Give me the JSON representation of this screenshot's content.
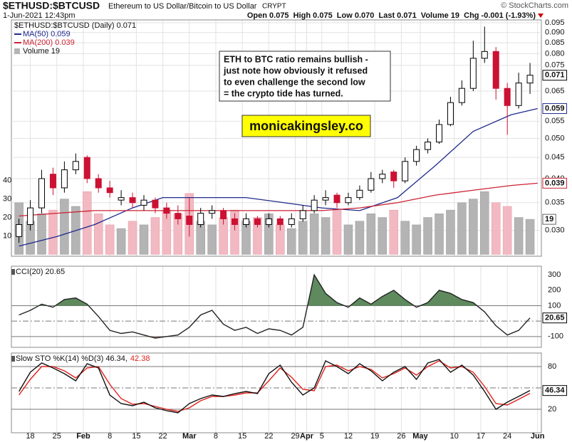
{
  "header": {
    "symbol": "$ETHUSD:$BTCUSD",
    "description": "Ethereum to US Dollar/Bitcoin to US Dollar",
    "exchange": "CRYPT",
    "date": "1-Jun-2021 12:43pm",
    "quote": "Open 0.075  High 0.075  Low 0.070  Last 0.071  Volume 19  Chg -0.001 (-1.93%)",
    "copyright": "© StockCharts.com"
  },
  "chart_data": [
    {
      "type": "candlestick",
      "legend_label": "$ETHUSD:$BTCUSD (Daily) 0.071",
      "last_label": "0.071",
      "up_color": "#000000",
      "down_color": "#cc1133",
      "log": true,
      "xlim": [
        -2,
        138
      ],
      "ylim": [
        0.026,
        0.0965
      ],
      "yticks": [
        0.095,
        {
          "value": 0.09,
          "label": "0.090"
        },
        0.085,
        {
          "value": 0.08,
          "label": "0.080"
        },
        0.075,
        0.065,
        0.055,
        {
          "value": 0.05,
          "label": "0.050"
        },
        0.045,
        {
          "value": 0.04,
          "label": "0.040"
        },
        0.035,
        {
          "value": 0.03,
          "label": "0.030"
        }
      ],
      "x": [
        0,
        3,
        6,
        9,
        12,
        15,
        18,
        21,
        24,
        27,
        30,
        33,
        36,
        39,
        42,
        45,
        48,
        51,
        54,
        57,
        60,
        63,
        66,
        69,
        72,
        75,
        78,
        81,
        84,
        87,
        90,
        93,
        96,
        99,
        102,
        105,
        108,
        111,
        114,
        117,
        120,
        123,
        126,
        129,
        132,
        135
      ],
      "open": [
        0.029,
        0.031,
        0.034,
        0.041,
        0.038,
        0.042,
        0.045,
        0.04,
        0.038,
        0.0355,
        0.036,
        0.0345,
        0.0355,
        0.034,
        0.033,
        0.0325,
        0.031,
        0.033,
        0.0335,
        0.032,
        0.031,
        0.032,
        0.031,
        0.032,
        0.031,
        0.032,
        0.0335,
        0.0355,
        0.0365,
        0.035,
        0.036,
        0.0375,
        0.04,
        0.0415,
        0.0395,
        0.044,
        0.047,
        0.049,
        0.054,
        0.061,
        0.066,
        0.078,
        0.081,
        0.066,
        0.06,
        0.068
      ],
      "high": [
        0.032,
        0.0355,
        0.042,
        0.0425,
        0.044,
        0.046,
        0.0455,
        0.041,
        0.0395,
        0.0375,
        0.037,
        0.0365,
        0.036,
        0.035,
        0.0345,
        0.036,
        0.034,
        0.0345,
        0.034,
        0.033,
        0.033,
        0.0325,
        0.033,
        0.0325,
        0.033,
        0.0345,
        0.0365,
        0.0375,
        0.037,
        0.037,
        0.0385,
        0.0415,
        0.042,
        0.042,
        0.045,
        0.048,
        0.05,
        0.0555,
        0.063,
        0.069,
        0.086,
        0.093,
        0.083,
        0.068,
        0.072,
        0.076
      ],
      "low": [
        0.028,
        0.03,
        0.033,
        0.0365,
        0.037,
        0.041,
        0.039,
        0.037,
        0.036,
        0.0345,
        0.034,
        0.0335,
        0.033,
        0.032,
        0.031,
        0.029,
        0.0305,
        0.032,
        0.031,
        0.03,
        0.0305,
        0.0305,
        0.0305,
        0.03,
        0.0305,
        0.0315,
        0.033,
        0.0345,
        0.034,
        0.0345,
        0.0355,
        0.037,
        0.039,
        0.038,
        0.039,
        0.043,
        0.046,
        0.0485,
        0.0535,
        0.06,
        0.065,
        0.076,
        0.062,
        0.051,
        0.059,
        0.064
      ],
      "close": [
        0.031,
        0.034,
        0.04,
        0.038,
        0.042,
        0.044,
        0.04,
        0.038,
        0.037,
        0.036,
        0.035,
        0.0355,
        0.034,
        0.033,
        0.032,
        0.031,
        0.033,
        0.0335,
        0.032,
        0.031,
        0.032,
        0.031,
        0.032,
        0.031,
        0.032,
        0.0335,
        0.0355,
        0.036,
        0.035,
        0.036,
        0.0375,
        0.04,
        0.041,
        0.0395,
        0.044,
        0.047,
        0.049,
        0.054,
        0.061,
        0.066,
        0.078,
        0.081,
        0.066,
        0.06,
        0.068,
        0.071
      ],
      "series": [
        {
          "name": "MA(50) 0.059",
          "label": "0.059",
          "color": "#1f2a8c",
          "x": [
            0,
            10,
            20,
            30,
            38,
            60,
            70,
            80,
            90,
            100,
            110,
            120,
            130,
            137
          ],
          "values": [
            0.0275,
            0.029,
            0.031,
            0.034,
            0.036,
            0.036,
            0.035,
            0.034,
            0.0335,
            0.036,
            0.043,
            0.052,
            0.057,
            0.059
          ]
        },
        {
          "name": "MA(200) 0.039",
          "label": "0.039",
          "color": "#cc2233",
          "x": [
            0,
            10,
            20,
            30,
            38,
            60,
            70,
            80,
            90,
            100,
            110,
            120,
            130,
            137
          ],
          "values": [
            0.0325,
            0.033,
            0.0335,
            0.0335,
            0.0335,
            0.0335,
            0.0335,
            0.0335,
            0.034,
            0.035,
            0.0365,
            0.0375,
            0.0385,
            0.039
          ]
        }
      ],
      "volume": {
        "name": "Volume 19",
        "label": "19",
        "up_color": "#b4b4b4",
        "down_color": "#f2b9c2",
        "ylim": [
          -1,
          127
        ],
        "yticks": [
          10,
          20,
          30,
          40
        ],
        "values": [
          28,
          18,
          22,
          24,
          30,
          26,
          34,
          22,
          16,
          14,
          18,
          16,
          20,
          24,
          22,
          33,
          18,
          16,
          20,
          24,
          18,
          20,
          22,
          16,
          14,
          18,
          22,
          20,
          24,
          16,
          18,
          22,
          20,
          24,
          18,
          16,
          20,
          22,
          24,
          28,
          30,
          34,
          28,
          26,
          20,
          19
        ]
      },
      "annotation": [
        "ETH to BTC ratio remains bullish -",
        "just note how obviously it refused",
        "to even challenge the second low",
        "= the crypto tide has turned."
      ],
      "watermark": "monicakingsley.co"
    },
    {
      "type": "line",
      "title": "CCI(20) 20.65",
      "xlim": [
        -2,
        138
      ],
      "ylim": [
        -170,
        356
      ],
      "yticks": [
        300,
        200,
        100,
        -100
      ],
      "reference_lines": [
        100,
        0,
        -100
      ],
      "fill_above": {
        "value": 100,
        "color": "#5e8a5e"
      },
      "fill_below": {
        "value": -100,
        "color": "#9a7b72"
      },
      "x": [
        0,
        3,
        6,
        9,
        12,
        15,
        18,
        21,
        24,
        27,
        30,
        33,
        36,
        39,
        42,
        45,
        48,
        51,
        54,
        57,
        60,
        63,
        66,
        69,
        72,
        75,
        78,
        81,
        84,
        87,
        90,
        93,
        96,
        99,
        102,
        105,
        108,
        111,
        114,
        117,
        120,
        123,
        126,
        129,
        132,
        135
      ],
      "series": [
        {
          "color": "#222222",
          "label": "20.65",
          "values": [
            40,
            70,
            110,
            90,
            140,
            150,
            110,
            30,
            -60,
            -80,
            -70,
            -90,
            -110,
            -100,
            -90,
            -40,
            40,
            70,
            -20,
            -60,
            -40,
            -80,
            -50,
            -60,
            -90,
            -40,
            300,
            180,
            120,
            90,
            150,
            110,
            160,
            200,
            140,
            90,
            120,
            200,
            180,
            140,
            120,
            60,
            -30,
            -90,
            -60,
            20.65
          ]
        }
      ]
    },
    {
      "type": "line",
      "title": "Slow STO %K(14) %D(3) 46.34,",
      "title_extra": "42.38",
      "xlim": [
        -2,
        138
      ],
      "ylim": [
        -13,
        99
      ],
      "yticks": [
        80,
        20
      ],
      "reference_lines": [
        80,
        50,
        20
      ],
      "x": [
        0,
        3,
        6,
        9,
        12,
        15,
        18,
        21,
        24,
        27,
        30,
        33,
        36,
        39,
        42,
        45,
        48,
        51,
        54,
        57,
        60,
        63,
        66,
        69,
        72,
        75,
        78,
        81,
        84,
        87,
        90,
        93,
        96,
        99,
        102,
        105,
        108,
        111,
        114,
        117,
        120,
        123,
        126,
        129,
        132,
        135
      ],
      "series": [
        {
          "color": "#111111",
          "label": "46.34",
          "values": [
            45,
            72,
            85,
            78,
            70,
            60,
            84,
            78,
            40,
            28,
            25,
            30,
            22,
            18,
            15,
            28,
            35,
            40,
            38,
            42,
            45,
            42,
            70,
            82,
            58,
            40,
            50,
            88,
            80,
            70,
            84,
            74,
            60,
            72,
            80,
            62,
            85,
            90,
            72,
            82,
            68,
            45,
            20,
            30,
            38,
            46.34
          ]
        },
        {
          "color": "#e0201b",
          "values": [
            40,
            62,
            80,
            80,
            74,
            64,
            78,
            80,
            55,
            35,
            27,
            28,
            24,
            20,
            17,
            22,
            32,
            38,
            38,
            40,
            43,
            43,
            60,
            78,
            65,
            48,
            46,
            80,
            82,
            74,
            80,
            76,
            64,
            70,
            78,
            68,
            80,
            88,
            78,
            80,
            72,
            52,
            28,
            26,
            34,
            42.38
          ]
        }
      ],
      "xticks": [
        {
          "value": 3,
          "label": "18"
        },
        {
          "value": 10,
          "label": "25"
        },
        {
          "value": 17,
          "label": "Feb"
        },
        {
          "value": 24,
          "label": "8"
        },
        {
          "value": 31,
          "label": "15"
        },
        {
          "value": 38,
          "label": "22"
        },
        {
          "value": 45,
          "label": "Mar"
        },
        {
          "value": 52,
          "label": "8"
        },
        {
          "value": 59,
          "label": "15"
        },
        {
          "value": 66,
          "label": "22"
        },
        {
          "value": 73,
          "label": "29"
        },
        {
          "value": 76,
          "label": "Apr"
        },
        {
          "value": 80,
          "label": "5"
        },
        {
          "value": 87,
          "label": "12"
        },
        {
          "value": 94,
          "label": "19"
        },
        {
          "value": 101,
          "label": "26"
        },
        {
          "value": 106,
          "label": "May"
        },
        {
          "value": 115,
          "label": "10"
        },
        {
          "value": 122,
          "label": "17"
        },
        {
          "value": 129,
          "label": "24"
        },
        {
          "value": 137,
          "label": "Jun"
        }
      ]
    }
  ]
}
